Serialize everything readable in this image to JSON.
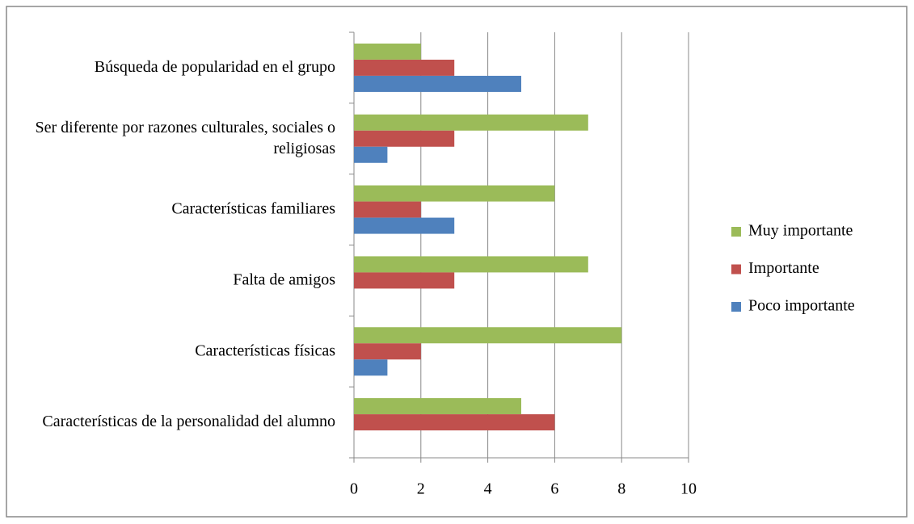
{
  "chart_data": {
    "type": "bar",
    "orientation": "horizontal",
    "categories": [
      "Búsqueda de popularidad en el grupo",
      "Ser diferente por razones culturales, sociales o religiosas",
      "Características familiares",
      "Falta de amigos",
      "Características físicas",
      "Características de la personalidad del alumno"
    ],
    "series": [
      {
        "name": "Muy importante",
        "color": "#9bbb59",
        "values": [
          2,
          7,
          6,
          7,
          8,
          5
        ]
      },
      {
        "name": "Importante",
        "color": "#c0504d",
        "values": [
          3,
          3,
          2,
          3,
          2,
          6
        ]
      },
      {
        "name": "Poco importante",
        "color": "#4f81bd",
        "values": [
          5,
          1,
          3,
          0,
          1,
          0
        ]
      }
    ],
    "xlim": [
      0,
      10
    ],
    "xticks": [
      0,
      2,
      4,
      6,
      8,
      10
    ],
    "grid": true,
    "legend": "right"
  }
}
